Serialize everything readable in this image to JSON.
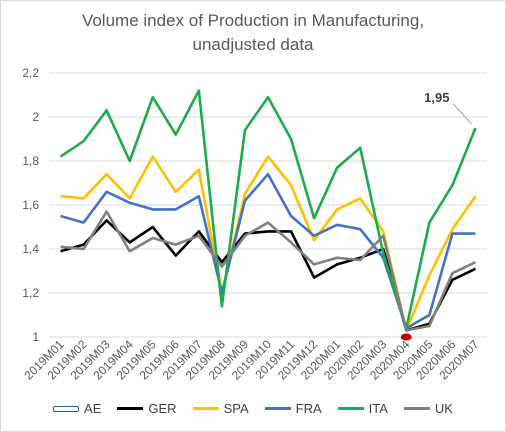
{
  "chart_data": {
    "type": "line",
    "title": "Volume index of Production in Manufacturing, unadjusted data",
    "title_lines": [
      "Volume index of Production in Manufacturing,",
      "unadjusted data"
    ],
    "categories": [
      "2019M01",
      "2019M02",
      "2019M03",
      "2019M04",
      "2019M05",
      "2019M06",
      "2019M07",
      "2019M08",
      "2019M09",
      "2019M10",
      "2019M11",
      "2019M12",
      "2020M01",
      "2020M02",
      "2020M03",
      "2020M04",
      "2020M05",
      "2020M06",
      "2020M07"
    ],
    "ylim": [
      1,
      2.2
    ],
    "yticks": [
      "1",
      "1,2",
      "1,4",
      "1,6",
      "1,8",
      "2",
      "2,2"
    ],
    "grid": true,
    "legend_position": "bottom",
    "annotation": {
      "text": "1,95",
      "series": "ITA",
      "category": "2020M07"
    },
    "series": [
      {
        "name": "AE",
        "color": "#2e5a99",
        "values": [
          null,
          null,
          null,
          null,
          null,
          null,
          null,
          null,
          null,
          null,
          null,
          null,
          null,
          null,
          null,
          1.0,
          null,
          null,
          null
        ]
      },
      {
        "name": "GER",
        "color": "#000000",
        "values": [
          1.39,
          1.42,
          1.53,
          1.43,
          1.5,
          1.37,
          1.48,
          1.34,
          1.47,
          1.48,
          1.48,
          1.27,
          1.33,
          1.36,
          1.4,
          1.03,
          1.06,
          1.26,
          1.31
        ]
      },
      {
        "name": "SPA",
        "color": "#ffc000",
        "values": [
          1.64,
          1.63,
          1.74,
          1.63,
          1.82,
          1.66,
          1.76,
          1.2,
          1.65,
          1.82,
          1.69,
          1.44,
          1.58,
          1.63,
          1.48,
          1.03,
          1.28,
          1.49,
          1.64
        ]
      },
      {
        "name": "FRA",
        "color": "#4472c4",
        "values": [
          1.55,
          1.52,
          1.66,
          1.61,
          1.58,
          1.58,
          1.64,
          1.2,
          1.62,
          1.74,
          1.55,
          1.46,
          1.51,
          1.49,
          1.36,
          1.04,
          1.1,
          1.47,
          1.47
        ]
      },
      {
        "name": "ITA",
        "color": "#1eab4c",
        "values": [
          1.82,
          1.89,
          2.03,
          1.8,
          2.09,
          1.92,
          2.12,
          1.14,
          1.94,
          2.09,
          1.9,
          1.54,
          1.77,
          1.86,
          1.38,
          1.04,
          1.52,
          1.69,
          1.95
        ]
      },
      {
        "name": "UK",
        "color": "#808080",
        "values": [
          1.41,
          1.4,
          1.57,
          1.39,
          1.45,
          1.42,
          1.46,
          1.32,
          1.46,
          1.52,
          1.43,
          1.33,
          1.36,
          1.35,
          1.46,
          1.03,
          1.05,
          1.29,
          1.34
        ]
      }
    ]
  }
}
